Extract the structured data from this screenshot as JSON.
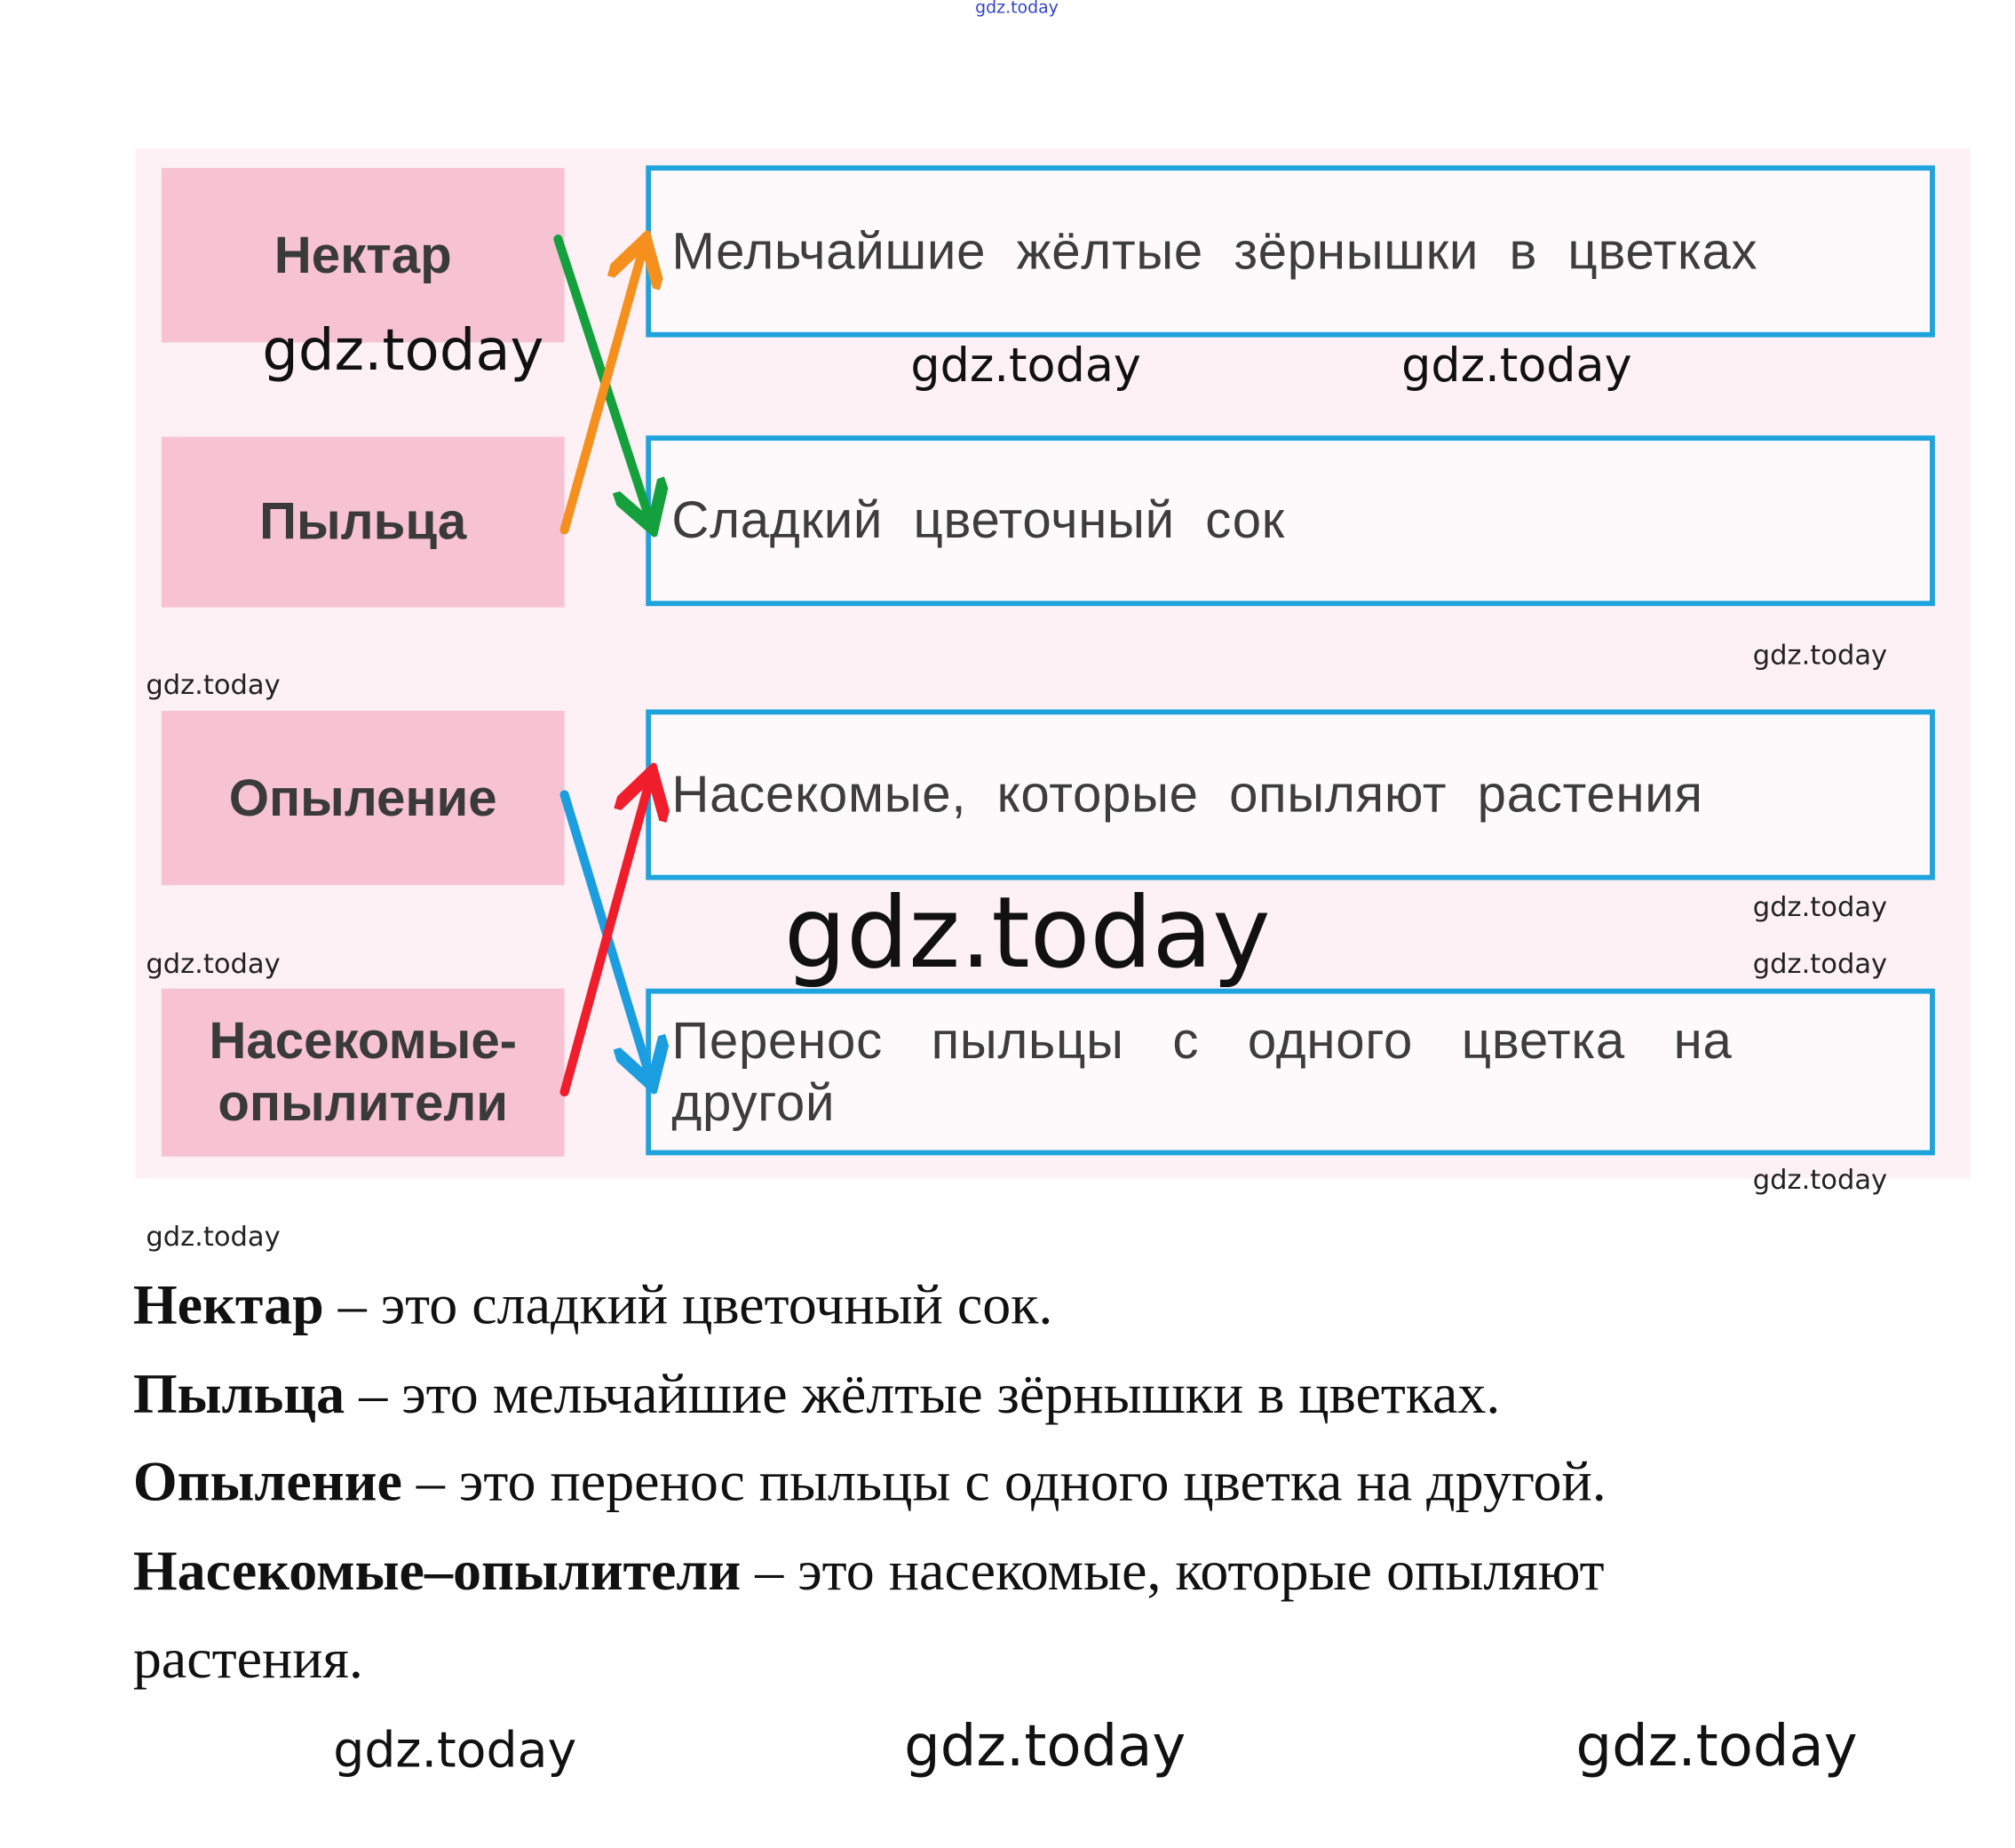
{
  "watermark": "gdz.today",
  "terms": [
    {
      "label": "Нектар"
    },
    {
      "label": "Пыльца"
    },
    {
      "label": "Опыление"
    },
    {
      "label": "Насекомые-опылители"
    }
  ],
  "descriptions": [
    "Мельчайшие жёлтые зёрнышки в цветках",
    "Сладкий цветочный сок",
    "Насекомые, которые опыляют растения",
    "Перенос пыльцы с одного цветка на другой"
  ],
  "arrows": [
    {
      "from": "Нектар",
      "to": "Сладкий цветочный сок",
      "color": "#14a03c"
    },
    {
      "from": "Пыльца",
      "to": "Мельчайшие жёлтые зёрнышки в цветках",
      "color": "#f5901e"
    },
    {
      "from": "Опыление",
      "to": "Перенос пыльцы с одного цветка на другой",
      "color": "#1a9ee0"
    },
    {
      "from": "Насекомые-опылители",
      "to": "Насекомые, которые опыляют растения",
      "color": "#f01e2c"
    }
  ],
  "definitions": [
    {
      "term": "Нектар",
      "text": " – это сладкий цветочный сок."
    },
    {
      "term": "Пыльца",
      "text": " – это мельчайшие жёлтые зёрнышки в цветках."
    },
    {
      "term": "Опыление",
      "text": " – это перенос пыльцы с одного цветка на другой."
    },
    {
      "term": "Насекомые–опылители",
      "text": " – это насекомые, которые опыляют",
      "continuation": "растения."
    }
  ]
}
